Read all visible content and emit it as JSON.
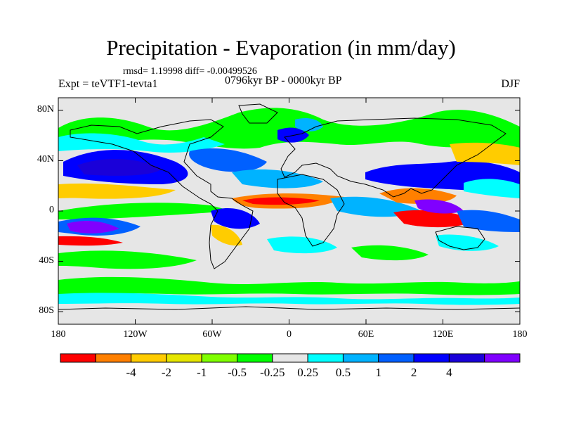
{
  "title": "Precipitation - Evaporation (in mm/day)",
  "stats_text": "rmsd= 1.19998 diff= -0.00499526",
  "experiment": "Expt = teVTF1-tevta1",
  "period": "0796kyr BP - 0000kyr BP",
  "season": "DJF",
  "map": {
    "lat_range": [
      -90,
      90
    ],
    "lon_range": [
      -180,
      180
    ],
    "lat_ticks": [
      {
        "value": 80,
        "label": "80N"
      },
      {
        "value": 40,
        "label": "40N"
      },
      {
        "value": 0,
        "label": "0"
      },
      {
        "value": -40,
        "label": "40S"
      },
      {
        "value": -80,
        "label": "80S"
      }
    ],
    "lon_ticks": [
      {
        "value": -180,
        "label": "180"
      },
      {
        "value": -120,
        "label": "120W"
      },
      {
        "value": -60,
        "label": "60W"
      },
      {
        "value": 0,
        "label": "0"
      },
      {
        "value": 60,
        "label": "60E"
      },
      {
        "value": 120,
        "label": "120E"
      },
      {
        "value": 180,
        "label": "180"
      }
    ]
  },
  "colorbar": {
    "colors": [
      "#ff0000",
      "#ff8000",
      "#ffcc00",
      "#e6e600",
      "#80ff00",
      "#00ff00",
      "#e6e6e6",
      "#00ffff",
      "#00b3ff",
      "#0060ff",
      "#0000ff",
      "#1a00d9",
      "#8000ff"
    ],
    "labels": [
      "-4",
      "-2",
      "-1",
      "-0.5",
      "-0.25",
      "0.25",
      "0.5",
      "1",
      "2",
      "4"
    ]
  },
  "palette": {
    "neutral": "#e6e6e6",
    "coast": "#000000"
  }
}
